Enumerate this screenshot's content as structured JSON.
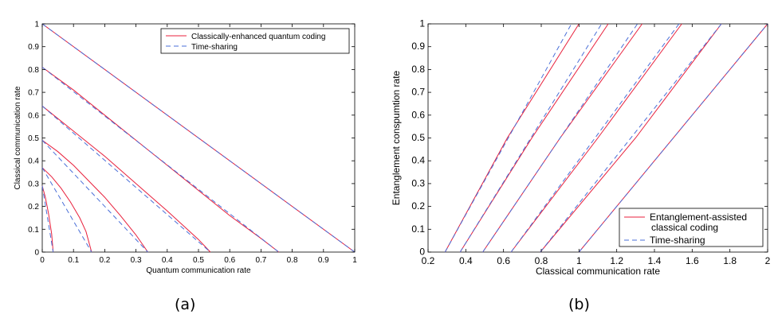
{
  "chart_data": [
    {
      "type": "line",
      "panel_label": "(a)",
      "xlabel": "Quantum communication rate",
      "ylabel": "Classical communication rate",
      "xlim": [
        0,
        1
      ],
      "ylim": [
        0,
        1
      ],
      "xticks": [
        "0",
        "0.1",
        "0.2",
        "0.3",
        "0.4",
        "0.5",
        "0.6",
        "0.7",
        "0.8",
        "0.9",
        "1"
      ],
      "yticks": [
        "0",
        "0.1",
        "0.2",
        "0.3",
        "0.4",
        "0.5",
        "0.6",
        "0.7",
        "0.8",
        "0.9",
        "1"
      ],
      "grid": false,
      "legend": "top-right",
      "series": [
        {
          "name": "Classically-enhanced quantum coding",
          "color": "#e8203c",
          "dash": "solid",
          "curves": [
            [
              [
                0,
                1
              ],
              [
                1,
                0
              ]
            ],
            [
              [
                0,
                0.81
              ],
              [
                0.1,
                0.71
              ],
              [
                0.2,
                0.6
              ],
              [
                0.3,
                0.49
              ],
              [
                0.4,
                0.38
              ],
              [
                0.5,
                0.27
              ],
              [
                0.6,
                0.16
              ],
              [
                0.7,
                0.06
              ],
              [
                0.757,
                0
              ]
            ],
            [
              [
                0,
                0.64
              ],
              [
                0.1,
                0.53
              ],
              [
                0.2,
                0.42
              ],
              [
                0.3,
                0.3
              ],
              [
                0.4,
                0.18
              ],
              [
                0.5,
                0.055
              ],
              [
                0.538,
                0
              ]
            ],
            [
              [
                0,
                0.49
              ],
              [
                0.05,
                0.44
              ],
              [
                0.1,
                0.38
              ],
              [
                0.15,
                0.31
              ],
              [
                0.2,
                0.24
              ],
              [
                0.25,
                0.16
              ],
              [
                0.3,
                0.075
              ],
              [
                0.338,
                0
              ]
            ],
            [
              [
                0,
                0.37
              ],
              [
                0.03,
                0.33
              ],
              [
                0.06,
                0.28
              ],
              [
                0.09,
                0.22
              ],
              [
                0.12,
                0.15
              ],
              [
                0.14,
                0.09
              ],
              [
                0.158,
                0
              ]
            ],
            [
              [
                0,
                0.29
              ],
              [
                0.01,
                0.24
              ],
              [
                0.02,
                0.17
              ],
              [
                0.03,
                0.08
              ],
              [
                0.035,
                0
              ]
            ]
          ]
        },
        {
          "name": "Time-sharing",
          "color": "#4a6fd8",
          "dash": "dashed",
          "curves": [
            [
              [
                0,
                1
              ],
              [
                1,
                0
              ]
            ],
            [
              [
                0,
                0.81
              ],
              [
                0.757,
                0
              ]
            ],
            [
              [
                0,
                0.64
              ],
              [
                0.538,
                0
              ]
            ],
            [
              [
                0,
                0.49
              ],
              [
                0.338,
                0
              ]
            ],
            [
              [
                0,
                0.37
              ],
              [
                0.158,
                0
              ]
            ],
            [
              [
                0,
                0.29
              ],
              [
                0.035,
                0
              ]
            ]
          ]
        }
      ]
    },
    {
      "type": "line",
      "panel_label": "(b)",
      "xlabel": "Classical communication rate",
      "ylabel": "Entanglement conspumtion rate",
      "xlim": [
        0.2,
        2
      ],
      "ylim": [
        0,
        1
      ],
      "xticks": [
        "0.2",
        "0.4",
        "0.6",
        "0.8",
        "1",
        "1.2",
        "1.4",
        "1.6",
        "1.8",
        "2"
      ],
      "yticks": [
        "0",
        "0.1",
        "0.2",
        "0.3",
        "0.4",
        "0.5",
        "0.6",
        "0.7",
        "0.8",
        "0.9",
        "1"
      ],
      "grid": false,
      "legend": "bottom-right",
      "series": [
        {
          "name": "Entanglement-assisted\nclassical coding",
          "color": "#e8203c",
          "dash": "solid",
          "curves": [
            [
              [
                1,
                0
              ],
              [
                2,
                1
              ]
            ],
            [
              [
                0.795,
                0
              ],
              [
                1.3,
                0.5
              ],
              [
                1.755,
                1
              ]
            ],
            [
              [
                0.64,
                0
              ],
              [
                1.1,
                0.5
              ],
              [
                1.545,
                1
              ]
            ],
            [
              [
                0.49,
                0
              ],
              [
                0.9,
                0.5
              ],
              [
                1.335,
                1
              ]
            ],
            [
              [
                0.37,
                0
              ],
              [
                0.75,
                0.5
              ],
              [
                1.155,
                1
              ]
            ],
            [
              [
                0.29,
                0
              ],
              [
                0.62,
                0.5
              ],
              [
                1.0,
                1
              ]
            ]
          ]
        },
        {
          "name": "Time-sharing",
          "color": "#4a6fd8",
          "dash": "dashed",
          "curves": [
            [
              [
                1,
                0
              ],
              [
                2,
                1
              ]
            ],
            [
              [
                0.795,
                0
              ],
              [
                1.755,
                1
              ]
            ],
            [
              [
                0.64,
                0
              ],
              [
                1.53,
                1
              ]
            ],
            [
              [
                0.49,
                0
              ],
              [
                1.31,
                1
              ]
            ],
            [
              [
                0.37,
                0
              ],
              [
                1.12,
                1
              ]
            ],
            [
              [
                0.29,
                0
              ],
              [
                0.96,
                1
              ]
            ]
          ]
        }
      ]
    }
  ]
}
